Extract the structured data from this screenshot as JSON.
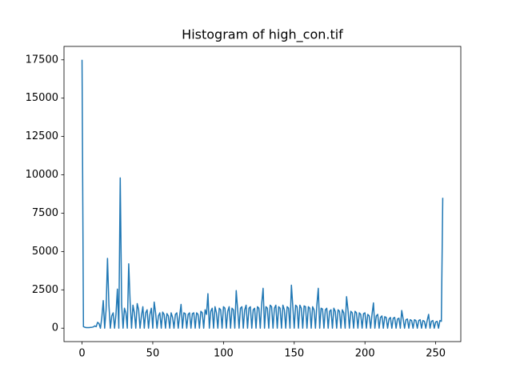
{
  "chart_data": {
    "type": "line",
    "title": "Histogram of high_con.tif",
    "color": "#1f77b4",
    "x": [
      0,
      1,
      2,
      3,
      4,
      5,
      6,
      7,
      8,
      9,
      10,
      11,
      12,
      13,
      14,
      15,
      16,
      17,
      18,
      19,
      20,
      21,
      22,
      23,
      24,
      25,
      26,
      27,
      28,
      29,
      30,
      31,
      32,
      33,
      34,
      35,
      36,
      37,
      38,
      39,
      40,
      41,
      42,
      43,
      44,
      45,
      46,
      47,
      48,
      49,
      50,
      51,
      52,
      53,
      54,
      55,
      56,
      57,
      58,
      59,
      60,
      61,
      62,
      63,
      64,
      65,
      66,
      67,
      68,
      69,
      70,
      71,
      72,
      73,
      74,
      75,
      76,
      77,
      78,
      79,
      80,
      81,
      82,
      83,
      84,
      85,
      86,
      87,
      88,
      89,
      90,
      91,
      92,
      93,
      94,
      95,
      96,
      97,
      98,
      99,
      100,
      101,
      102,
      103,
      104,
      105,
      106,
      107,
      108,
      109,
      110,
      111,
      112,
      113,
      114,
      115,
      116,
      117,
      118,
      119,
      120,
      121,
      122,
      123,
      124,
      125,
      126,
      127,
      128,
      129,
      130,
      131,
      132,
      133,
      134,
      135,
      136,
      137,
      138,
      139,
      140,
      141,
      142,
      143,
      144,
      145,
      146,
      147,
      148,
      149,
      150,
      151,
      152,
      153,
      154,
      155,
      156,
      157,
      158,
      159,
      160,
      161,
      162,
      163,
      164,
      165,
      166,
      167,
      168,
      169,
      170,
      171,
      172,
      173,
      174,
      175,
      176,
      177,
      178,
      179,
      180,
      181,
      182,
      183,
      184,
      185,
      186,
      187,
      188,
      189,
      190,
      191,
      192,
      193,
      194,
      195,
      196,
      197,
      198,
      199,
      200,
      201,
      202,
      203,
      204,
      205,
      206,
      207,
      208,
      209,
      210,
      211,
      212,
      213,
      214,
      215,
      216,
      217,
      218,
      219,
      220,
      221,
      222,
      223,
      224,
      225,
      226,
      227,
      228,
      229,
      230,
      231,
      232,
      233,
      234,
      235,
      236,
      237,
      238,
      239,
      240,
      241,
      242,
      243,
      244,
      245,
      246,
      247,
      248,
      249,
      250,
      251,
      252,
      253,
      254,
      255
    ],
    "values": [
      17500,
      100,
      60,
      40,
      40,
      40,
      50,
      60,
      80,
      150,
      100,
      380,
      300,
      0,
      700,
      1800,
      0,
      1200,
      4550,
      1500,
      0,
      800,
      1000,
      0,
      900,
      2550,
      0,
      9800,
      1500,
      0,
      1300,
      1000,
      0,
      4200,
      1700,
      0,
      1500,
      1000,
      0,
      1600,
      1200,
      0,
      800,
      1400,
      0,
      1000,
      1200,
      0,
      900,
      1300,
      0,
      1700,
      1000,
      0,
      800,
      1000,
      0,
      1050,
      900,
      0,
      950,
      800,
      0,
      1000,
      700,
      0,
      900,
      1000,
      0,
      800,
      1550,
      0,
      1000,
      950,
      0,
      900,
      1000,
      0,
      950,
      1000,
      0,
      1000,
      900,
      0,
      1100,
      1000,
      0,
      1200,
      900,
      2250,
      0,
      1100,
      1300,
      0,
      1400,
      1000,
      0,
      1300,
      1200,
      0,
      1400,
      1300,
      0,
      1100,
      1400,
      0,
      1300,
      1200,
      0,
      2450,
      1200,
      0,
      1300,
      1400,
      0,
      1200,
      1500,
      0,
      1300,
      1400,
      0,
      1200,
      1300,
      0,
      1400,
      1300,
      0,
      1600,
      2600,
      0,
      1400,
      1300,
      0,
      1500,
      1400,
      0,
      1300,
      1500,
      0,
      1400,
      1300,
      0,
      1500,
      1200,
      0,
      1400,
      1300,
      0,
      2800,
      1400,
      0,
      1500,
      1400,
      0,
      1500,
      1300,
      0,
      1450,
      1400,
      0,
      1400,
      1300,
      0,
      1400,
      1200,
      0,
      1500,
      2600,
      0,
      1300,
      1250,
      0,
      1200,
      1300,
      0,
      1100,
      1200,
      0,
      1300,
      1100,
      0,
      1200,
      1100,
      0,
      1200,
      1000,
      0,
      2050,
      1200,
      0,
      1100,
      1000,
      0,
      1100,
      1000,
      0,
      1000,
      900,
      0,
      950,
      1000,
      0,
      900,
      800,
      0,
      900,
      1650,
      0,
      800,
      900,
      0,
      700,
      800,
      0,
      750,
      700,
      0,
      600,
      700,
      0,
      650,
      700,
      0,
      600,
      650,
      0,
      1150,
      600,
      0,
      550,
      600,
      0,
      550,
      500,
      0,
      550,
      500,
      0,
      500,
      550,
      0,
      500,
      450,
      0,
      500,
      900,
      0,
      450,
      500,
      0,
      400,
      450,
      0,
      500,
      450,
      8500
    ],
    "xlim": [
      -12.75,
      267.75
    ],
    "xticks": [
      0,
      50,
      100,
      150,
      200,
      250
    ],
    "ylim": [
      -875,
      18375
    ],
    "yticks": [
      0,
      2500,
      5000,
      7500,
      10000,
      12500,
      15000,
      17500
    ]
  }
}
